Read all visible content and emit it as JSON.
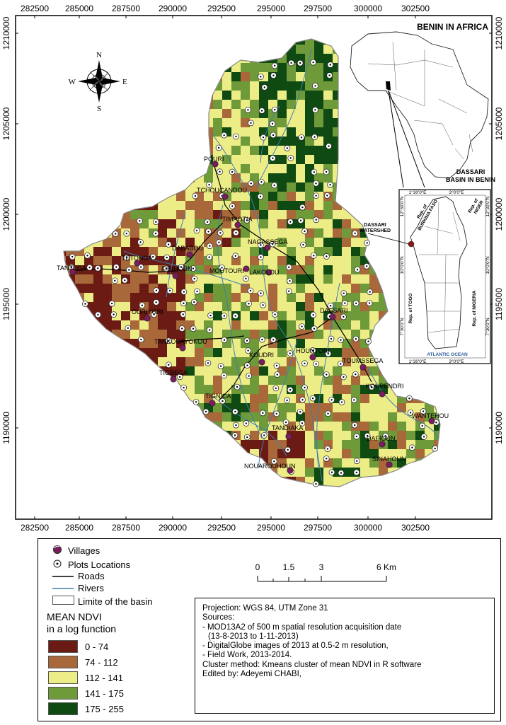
{
  "map": {
    "x_ticks": [
      "282500",
      "285000",
      "287500",
      "290000",
      "292500",
      "295000",
      "297500",
      "300000",
      "302500"
    ],
    "y_ticks": [
      "1210000",
      "1205000",
      "1200000",
      "1195000",
      "1190000"
    ],
    "africa_inset_title": "BENIN IN AFRICA",
    "benin_inset_title_1": "DASSARI",
    "benin_inset_title_2": "BASIN IN BENIN",
    "watershed_label_1": "DASSARI",
    "watershed_label_2": "WATERSHED",
    "inset_top_ticks": [
      "1°30'0\"E",
      "3°0'0\"E"
    ],
    "inset_bottom_ticks": [
      "1°30'0\"E",
      "3°0'0\"E"
    ],
    "inset_left_ticks": [
      "12°30'0\"N",
      "10°0'0\"N",
      "7°30'0\"N"
    ],
    "inset_right_ticks": [
      "12°30'0\"N",
      "10°0'0\"N",
      "7°30'0\"N"
    ],
    "country_burkina_1": "Rep. of",
    "country_burkina_2": "BURKINA FASO",
    "country_niger_1": "Rep. of",
    "country_niger_2": "NIGER",
    "country_togo": "Rep. of TOGO",
    "country_nigeria": "Rep. of NIGERIA",
    "ocean_label": "ATLANTIC OCEAN",
    "compass": {
      "n": "N",
      "s": "S",
      "e": "E",
      "w": "W"
    },
    "villages": [
      "POURI",
      "TCHOUCANDOU",
      "TIMPOTIA",
      "NAGASSEGA",
      "DABABOU",
      "TETONGA",
      "FIRIHOUN",
      "MOUTOURI",
      "LAKOLOU",
      "TANTEGA",
      "OURIYORI",
      "DASSARI",
      "TANKOUAYOKOU",
      "KOUDRI",
      "HOUNTORI",
      "TIGBEGA",
      "TOUMSSEGA",
      "KOUPENDRI",
      "TIGNICA",
      "WANTEHOU",
      "TANDIAKA",
      "DAFIOUN",
      "NOUAROUHOUN",
      "SINAHOUN"
    ],
    "colors": {
      "class1": "#6b1a14",
      "class2": "#a8683a",
      "class3": "#eded87",
      "class4": "#6e9a3a",
      "class5": "#0f4a12",
      "river": "#3d7fb0"
    }
  },
  "legend": {
    "villages": "Villages",
    "plots": "Plots Locations",
    "roads": "Roads",
    "rivers": "Rivers",
    "limit": "Limite of the basin",
    "ndvi_title_1": "MEAN NDVI",
    "ndvi_title_2": "in a log function",
    "classes": [
      "0 - 74",
      "74 - 112",
      "112 - 141",
      "141 - 175",
      "175 - 255"
    ]
  },
  "scalebar": {
    "labels": [
      "0",
      "1.5",
      "3",
      "6 Km"
    ]
  },
  "metadata": {
    "l1": "Projection: WGS 84, UTM Zone 31",
    "l2": "Sources:",
    "l3": "- MOD13A2 of 500 m spatial resolution acquisition date",
    "l4": "(13-8-2013 to 1-11-2013)",
    "l5": "- DigitalGlobe images of 2013 at 0.5-2 m resolution,",
    "l6": "- Field Work, 2013-2014.",
    "l7": "Cluster method: Kmeans cluster of mean NDVI in R software",
    "l8": "Edited by: Adeyemi CHABI,"
  }
}
